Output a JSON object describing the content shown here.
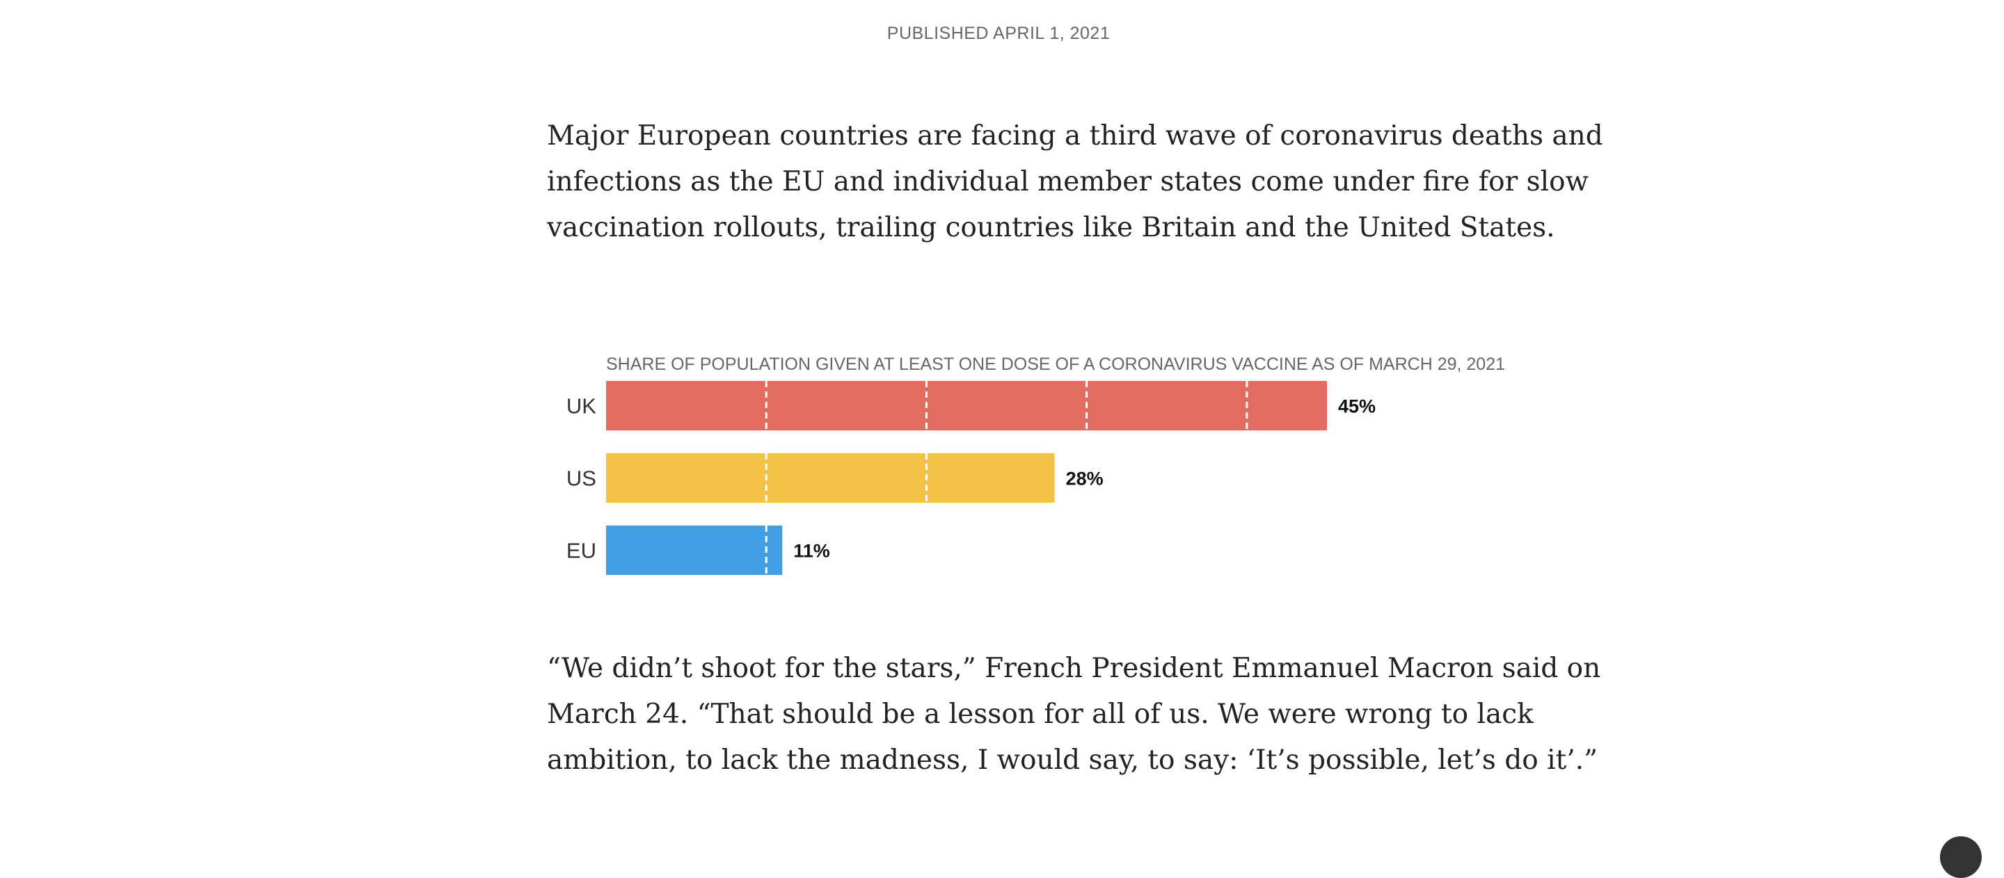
{
  "article": {
    "published": "PUBLISHED APRIL 1, 2021",
    "paragraph_1": [
      "Major European countries are facing a third wave of coronavirus deaths and",
      "infections as the EU and individual member states come under fire for slow",
      "vaccination rollouts, trailing countries like Britain and the United States."
    ],
    "paragraph_2": [
      "“We didn’t shoot for the stars,” French President Emmanuel Macron said on",
      "March 24. “That should be a lesson for all of us. We were wrong to lack",
      "ambition, to lack the madness, I would say, to say: ‘It’s possible, let’s do it’.”"
    ]
  },
  "chart_data": {
    "type": "bar",
    "orientation": "horizontal",
    "title": "SHARE OF POPULATION GIVEN AT LEAST ONE DOSE OF A CORONAVIRUS VACCINE AS OF MARCH 29, 2021",
    "categories": [
      "UK",
      "US",
      "EU"
    ],
    "values": [
      45,
      28,
      11
    ],
    "value_labels": [
      "45%",
      "28%",
      "11%"
    ],
    "colors": [
      "#e26c60",
      "#f4c246",
      "#41a0e4"
    ],
    "xlim": [
      0,
      45
    ],
    "gridlines": [
      10,
      20,
      30,
      40
    ],
    "gridline_style": "dashed-white",
    "legend": "none"
  },
  "ui": {
    "corner_button_color": "#333333"
  }
}
